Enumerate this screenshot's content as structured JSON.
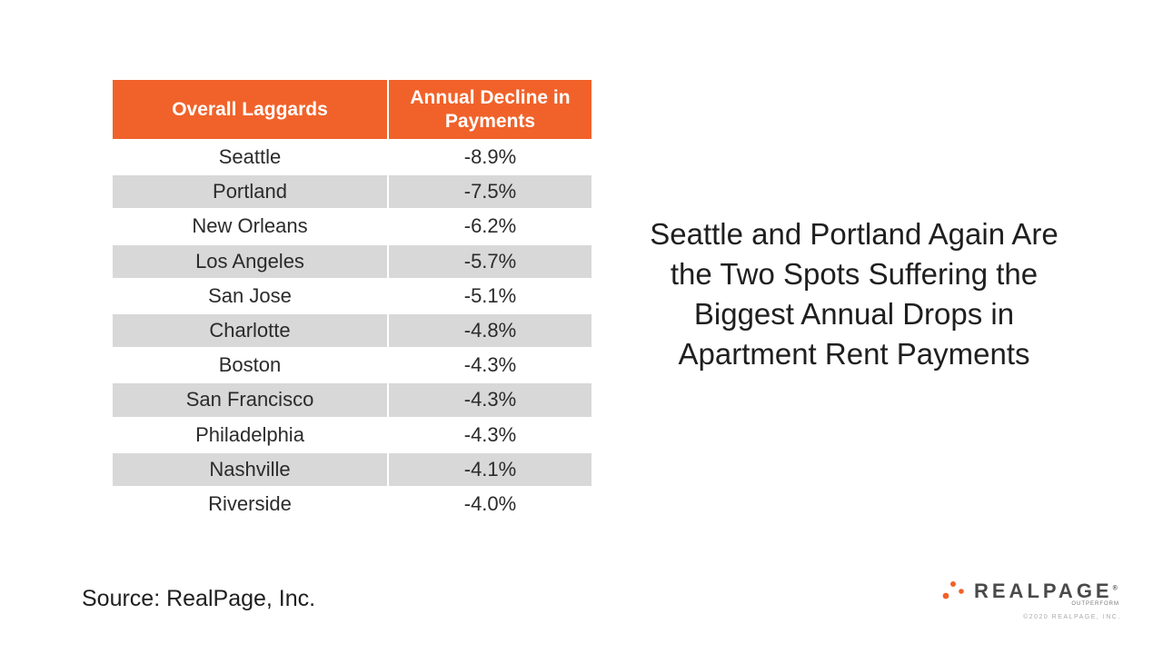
{
  "table": {
    "headers": [
      "Overall Laggards",
      "Annual Decline in Payments"
    ],
    "rows": [
      [
        "Seattle",
        "-8.9%"
      ],
      [
        "Portland",
        "-7.5%"
      ],
      [
        "New Orleans",
        "-6.2%"
      ],
      [
        "Los Angeles",
        "-5.7%"
      ],
      [
        "San Jose",
        "-5.1%"
      ],
      [
        "Charlotte",
        "-4.8%"
      ],
      [
        "Boston",
        "-4.3%"
      ],
      [
        "San Francisco",
        "-4.3%"
      ],
      [
        "Philadelphia",
        "-4.3%"
      ],
      [
        "Nashville",
        "-4.1%"
      ],
      [
        "Riverside",
        "-4.0%"
      ]
    ]
  },
  "headline": "Seattle and Portland Again Are the Two Spots Suffering the Biggest Annual Drops in Apartment Rent Payments",
  "source": "Source: RealPage, Inc.",
  "logo": {
    "wordmark": "REALPAGE",
    "tagline": "OUTPERFORM",
    "trademark": "®"
  },
  "copyright": "©2020 REALPAGE, INC.",
  "colors": {
    "header_orange": "#f0622a",
    "row_stripe": "#d8d8d8"
  }
}
